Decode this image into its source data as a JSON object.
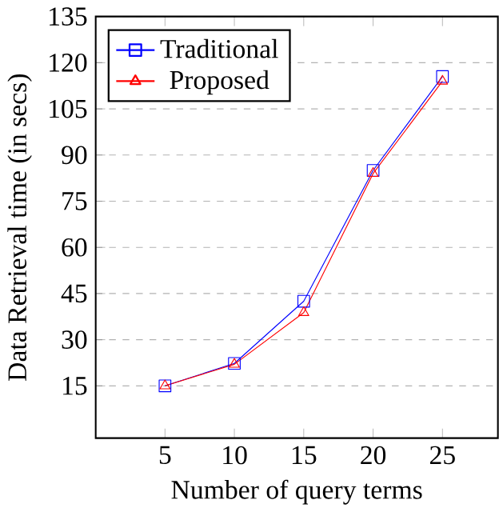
{
  "chart_data": {
    "type": "line",
    "xlabel": "Number of query terms",
    "ylabel": "Data Retrieval time (in secs)",
    "x": [
      5,
      10,
      15,
      20,
      25
    ],
    "series": [
      {
        "name": "Traditional",
        "color": "#0000ff",
        "marker": "square",
        "values": [
          15,
          22.3,
          42.5,
          85,
          115.5
        ]
      },
      {
        "name": "Proposed",
        "color": "#ff0000",
        "marker": "triangle",
        "values": [
          15,
          22,
          38.8,
          84,
          114
        ]
      }
    ],
    "xlim": [
      0,
      29
    ],
    "ylim": [
      -2,
      135
    ],
    "xticks": [
      5,
      10,
      15,
      20,
      25
    ],
    "yticks": [
      15,
      30,
      45,
      60,
      75,
      90,
      105,
      120,
      135
    ],
    "grid": "y",
    "legend": "top left",
    "line_style": "solid"
  }
}
